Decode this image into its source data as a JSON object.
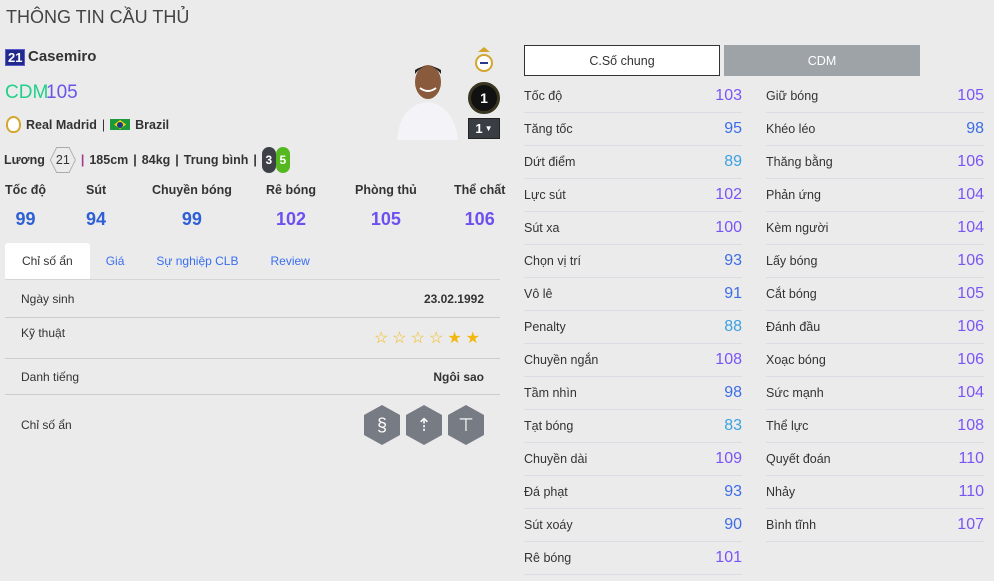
{
  "title": "THÔNG TIN CẦU THỦ",
  "player": {
    "number": "21",
    "name": "Casemiro",
    "position": "CDM",
    "rating": "105",
    "club": "Real Madrid",
    "separator": "|",
    "nation": "Brazil",
    "salary_label": "Lương",
    "salary": "21",
    "height": "185cm",
    "weight": "84kg",
    "body": "Trung bình",
    "weak_foot": "3",
    "strong_foot": "5",
    "level": "1",
    "level_select": "1"
  },
  "summary": [
    {
      "label": "Tốc độ",
      "value": "99"
    },
    {
      "label": "Sút",
      "value": "94"
    },
    {
      "label": "Chuyền bóng",
      "value": "99"
    },
    {
      "label": "Rê bóng",
      "value": "102"
    },
    {
      "label": "Phòng thủ",
      "value": "105"
    },
    {
      "label": "Thể chất",
      "value": "106"
    }
  ],
  "tabs": [
    "Chỉ số ẩn",
    "Giá",
    "Sự nghiệp CLB",
    "Review"
  ],
  "details": {
    "birth_label": "Ngày sinh",
    "birth": "23.02.1992",
    "skill_label": "Kỹ thuật",
    "skill_stars": 2,
    "skill_max": 6,
    "rep_label": "Danh tiếng",
    "rep": "Ngôi sao",
    "hidden_label": "Chỉ số ẩn",
    "hidden_icons": [
      "snake-dribble-icon",
      "long-shot-icon",
      "finesse-shot-icon"
    ]
  },
  "buttons": {
    "general": "C.Số chung",
    "position": "CDM"
  },
  "colors": {
    "high": "#7a55f5",
    "mid": "#3c6ce6",
    "low": "#3aa2e0",
    "position": "#22d08a"
  },
  "stats_left": [
    [
      "Tốc độ",
      103
    ],
    [
      "Tăng tốc",
      95
    ],
    [
      "Dứt điểm",
      89
    ],
    [
      "Lực sút",
      102
    ],
    [
      "Sút xa",
      100
    ],
    [
      "Chọn vị trí",
      93
    ],
    [
      "Vô lê",
      91
    ],
    [
      "Penalty",
      88
    ],
    [
      "Chuyền ngắn",
      108
    ],
    [
      "Tầm nhìn",
      98
    ],
    [
      "Tạt bóng",
      83
    ],
    [
      "Chuyền dài",
      109
    ],
    [
      "Đá phạt",
      93
    ],
    [
      "Sút xoáy",
      90
    ],
    [
      "Rê bóng",
      101
    ]
  ],
  "stats_right": [
    [
      "Giữ bóng",
      105
    ],
    [
      "Khéo léo",
      98
    ],
    [
      "Thăng bằng",
      106
    ],
    [
      "Phản ứng",
      104
    ],
    [
      "Kèm người",
      104
    ],
    [
      "Lấy bóng",
      106
    ],
    [
      "Cắt bóng",
      105
    ],
    [
      "Đánh đầu",
      106
    ],
    [
      "Xoạc bóng",
      106
    ],
    [
      "Sức mạnh",
      104
    ],
    [
      "Thể lực",
      108
    ],
    [
      "Quyết đoán",
      110
    ],
    [
      "Nhảy",
      110
    ],
    [
      "Bình tĩnh",
      107
    ]
  ]
}
